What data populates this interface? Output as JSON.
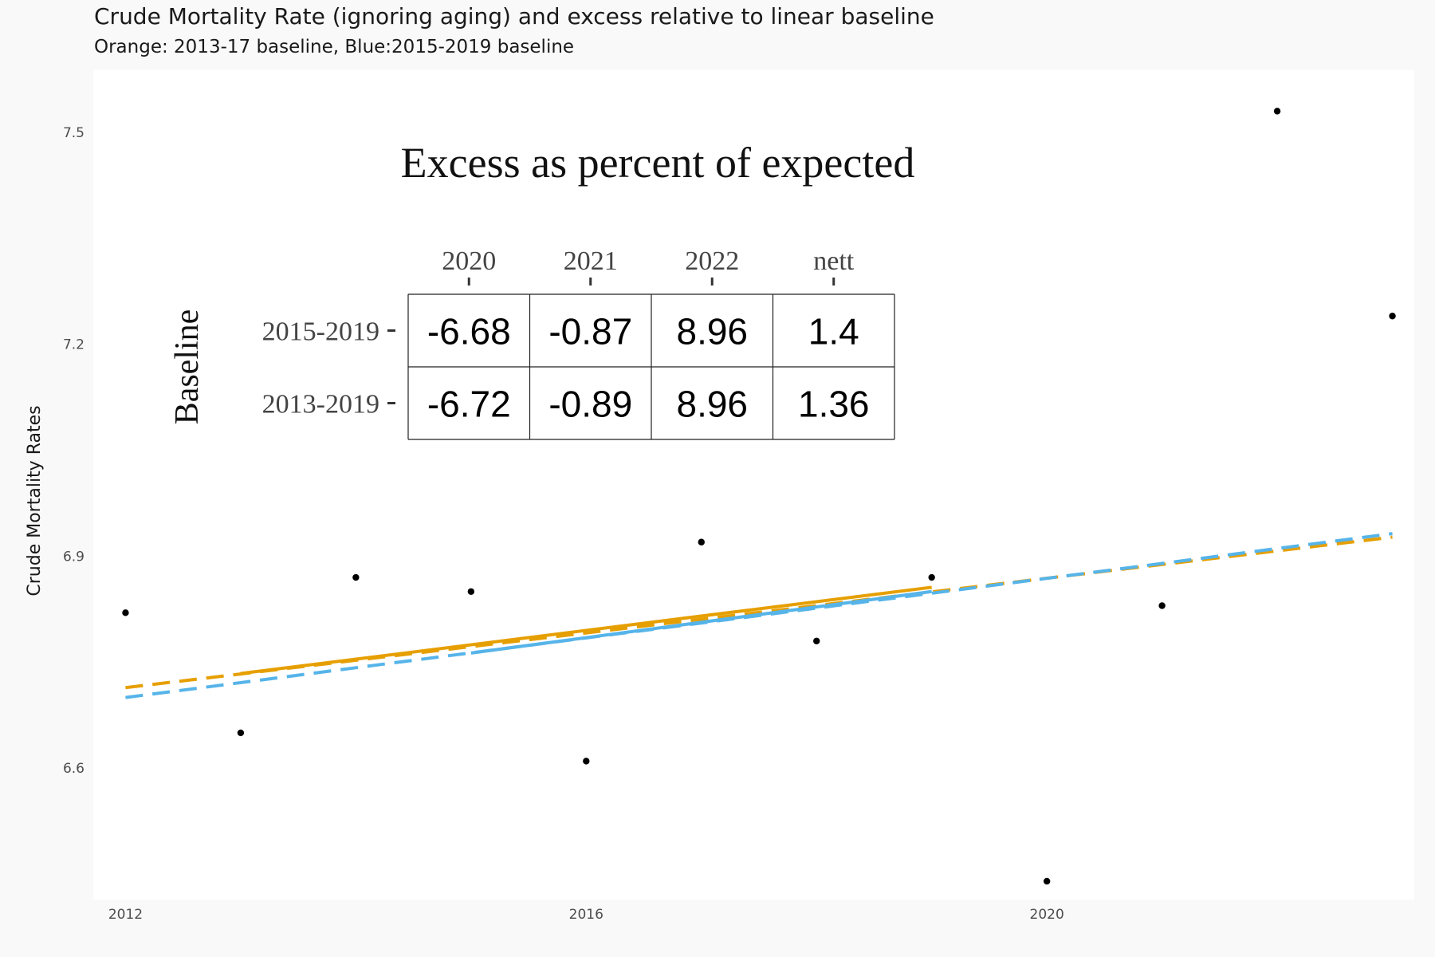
{
  "header": {
    "title": "Crude Mortality Rate (ignoring aging) and excess relative to linear baseline",
    "subtitle": "Orange: 2013-17 baseline, Blue:2015-2019 baseline"
  },
  "colors": {
    "background": "#f9f9f9",
    "panel": "#ffffff",
    "points": "#000000",
    "orange": "#e69f00",
    "blue": "#56b4e9"
  },
  "chart_data": {
    "type": "scatter",
    "title": "",
    "xlabel": "",
    "ylabel": "Crude Mortality Rates",
    "xlim": [
      2011.72,
      2023.19
    ],
    "ylim": [
      6.414,
      7.588
    ],
    "x_ticks": [
      2012,
      2016,
      2020
    ],
    "y_ticks": [
      6.6,
      6.9,
      7.2,
      7.5
    ],
    "x_tick_labels": [
      "2012",
      "2016",
      "2020"
    ],
    "y_tick_labels": [
      "6.6",
      "6.9",
      "7.2",
      "7.5"
    ],
    "grid": false,
    "points": [
      {
        "x": 2012,
        "y": 6.82
      },
      {
        "x": 2013,
        "y": 6.65
      },
      {
        "x": 2014,
        "y": 6.87
      },
      {
        "x": 2015,
        "y": 6.85
      },
      {
        "x": 2016,
        "y": 6.61
      },
      {
        "x": 2017,
        "y": 6.92
      },
      {
        "x": 2018,
        "y": 6.78
      },
      {
        "x": 2019,
        "y": 6.87
      },
      {
        "x": 2020,
        "y": 6.44
      },
      {
        "x": 2021,
        "y": 6.83
      },
      {
        "x": 2022,
        "y": 7.53
      },
      {
        "x": 2023,
        "y": 7.24
      }
    ],
    "lines": [
      {
        "color": "orange",
        "fit_start": 2013,
        "fit_end": 2019,
        "solid": [
          [
            2013,
            6.734
          ],
          [
            2019,
            6.856
          ]
        ],
        "dashed": [
          [
            2012,
            6.714
          ],
          [
            2023,
            6.927
          ]
        ]
      },
      {
        "color": "blue",
        "fit_start": 2015,
        "fit_end": 2019,
        "solid": [
          [
            2015,
            6.763
          ],
          [
            2019,
            6.85
          ]
        ],
        "dashed": [
          [
            2012,
            6.7
          ],
          [
            2023,
            6.932
          ]
        ]
      }
    ],
    "inset_table": {
      "title": "Excess as percent of expected",
      "row_title": "Baseline",
      "columns": [
        "2020",
        "2021",
        "2022",
        "nett"
      ],
      "rows": [
        {
          "label": "2015-2019",
          "values": [
            "-6.68",
            "-0.87",
            "8.96",
            "1.4"
          ]
        },
        {
          "label": "2013-2019",
          "values": [
            "-6.72",
            "-0.89",
            "8.96",
            "1.36"
          ]
        }
      ]
    }
  }
}
